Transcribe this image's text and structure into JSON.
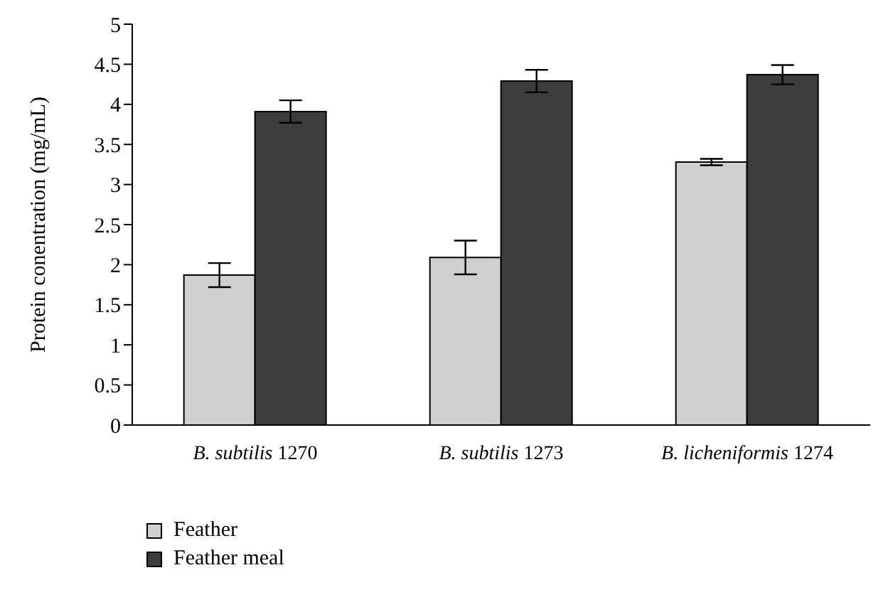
{
  "chart_data": {
    "type": "bar",
    "ylabel": "Protein conentration (mg/mL)",
    "categories": [
      "B. subtilis 1270",
      "B. subtilis 1273",
      "B. licheniformis 1274"
    ],
    "series": [
      {
        "name": "Feather",
        "color": "#d0d0d0",
        "values": [
          1.87,
          2.09,
          3.28
        ],
        "errors": [
          0.15,
          0.21,
          0.04
        ]
      },
      {
        "name": "Feather meal",
        "color": "#3c3c3c",
        "values": [
          3.91,
          4.29,
          4.37
        ],
        "errors": [
          0.14,
          0.14,
          0.12
        ]
      }
    ],
    "ylim": [
      0,
      5
    ],
    "yticks": [
      0,
      0.5,
      1,
      1.5,
      2,
      2.5,
      3,
      3.5,
      4,
      4.5,
      5
    ],
    "grid": false,
    "legend": "bottom left"
  }
}
